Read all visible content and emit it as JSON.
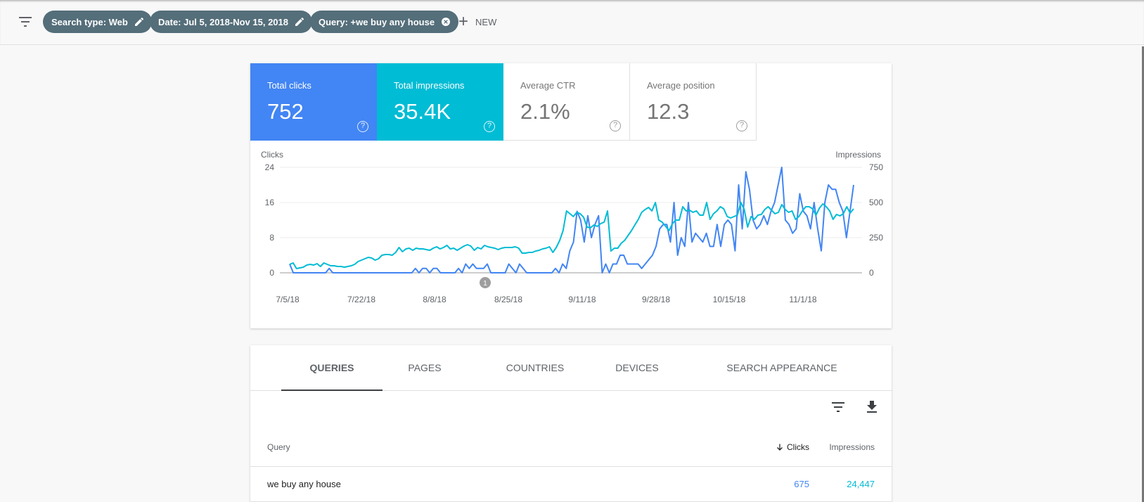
{
  "filter_bar": {
    "chips": [
      {
        "label": "Search type: Web",
        "icon": "pencil-icon"
      },
      {
        "label": "Date: Jul 5, 2018-Nov 15, 2018",
        "icon": "pencil-icon"
      },
      {
        "label": "Query: +we buy any house",
        "icon": "close-circle-icon"
      }
    ],
    "new_label": "NEW"
  },
  "metrics": {
    "clicks": {
      "label": "Total clicks",
      "value": "752",
      "color": "#4285f4"
    },
    "impressions": {
      "label": "Total impressions",
      "value": "35.4K",
      "color": "#00bcd4"
    },
    "ctr": {
      "label": "Average CTR",
      "value": "2.1%"
    },
    "position": {
      "label": "Average position",
      "value": "12.3"
    }
  },
  "chart_data": {
    "type": "line",
    "left_axis_label": "Clicks",
    "right_axis_label": "Impressions",
    "left_ticks": [
      "24",
      "16",
      "8",
      "0"
    ],
    "right_ticks": [
      "750",
      "500",
      "250",
      "0"
    ],
    "ylim_left": [
      0,
      24
    ],
    "ylim_right": [
      0,
      750
    ],
    "x_ticks": [
      "7/5/18",
      "7/22/18",
      "8/8/18",
      "8/25/18",
      "9/11/18",
      "9/28/18",
      "10/15/18",
      "11/1/18"
    ],
    "annotation": "1",
    "grid": true,
    "series": [
      {
        "name": "Clicks",
        "axis": "left",
        "color": "#4285f4",
        "values": [
          2,
          0,
          0,
          0,
          0,
          0,
          0,
          0,
          0,
          0,
          0,
          1,
          0,
          0,
          0,
          0,
          0,
          0,
          0,
          0,
          0,
          0,
          0,
          0,
          0,
          0,
          0,
          0,
          0,
          0,
          0,
          0,
          0,
          0,
          0,
          1,
          0,
          1,
          1,
          0,
          1,
          1,
          0,
          0,
          0,
          0,
          0,
          1,
          0,
          2,
          1,
          2,
          1,
          1,
          1,
          2,
          0,
          0,
          0,
          0,
          0,
          2,
          1,
          0,
          2,
          1,
          0,
          0,
          0,
          0,
          0,
          0,
          0,
          0,
          1,
          0,
          2,
          1,
          5,
          7,
          14,
          12,
          7,
          13,
          8,
          11,
          13,
          0,
          2,
          0,
          2,
          2,
          4,
          4,
          2,
          2,
          2,
          2,
          1,
          2,
          3,
          4,
          6,
          10,
          11,
          11,
          7,
          16,
          4,
          8,
          6,
          16,
          7,
          9,
          8,
          7,
          9,
          6,
          6,
          11,
          6,
          11,
          12,
          11,
          5,
          20,
          10,
          23,
          19,
          12,
          10,
          11,
          13,
          11,
          14,
          16,
          20,
          24,
          12,
          11,
          9,
          10,
          18,
          14,
          13,
          10,
          16,
          10,
          5,
          16,
          20,
          19,
          19,
          16,
          14,
          8,
          14,
          20
        ]
      },
      {
        "name": "Impressions",
        "axis": "right",
        "color": "#00bcd4",
        "values": [
          60,
          70,
          30,
          35,
          40,
          55,
          60,
          55,
          65,
          45,
          70,
          60,
          50,
          50,
          45,
          45,
          40,
          45,
          50,
          60,
          80,
          90,
          100,
          110,
          105,
          90,
          100,
          125,
          130,
          130,
          125,
          145,
          180,
          150,
          170,
          175,
          160,
          175,
          170,
          170,
          165,
          160,
          175,
          185,
          170,
          180,
          195,
          170,
          175,
          160,
          175,
          190,
          200,
          190,
          160,
          180,
          170,
          195,
          185,
          180,
          175,
          165,
          175,
          180,
          180,
          180,
          185,
          175,
          140,
          140,
          145,
          145,
          155,
          160,
          170,
          175,
          185,
          145,
          180,
          230,
          300,
          440,
          420,
          400,
          430,
          420,
          395,
          325,
          320,
          340,
          330,
          350,
          360,
          440,
          155,
          175,
          175,
          210,
          230,
          265,
          300,
          340,
          380,
          430,
          450,
          465,
          440,
          500,
          375,
          360,
          330,
          300,
          350,
          375,
          375,
          470,
          440,
          445,
          430,
          440,
          410,
          410,
          500,
          380,
          420,
          440,
          470,
          455,
          400,
          390,
          400,
          410,
          500,
          450,
          325,
          400,
          380,
          410,
          415,
          450,
          470,
          445,
          420,
          430,
          485,
          450,
          430,
          440,
          380,
          400,
          440,
          470,
          470,
          455,
          410,
          460,
          490,
          470,
          440,
          380,
          415,
          405,
          420,
          470,
          425,
          455
        ]
      }
    ]
  },
  "tabs": {
    "items": [
      "QUERIES",
      "PAGES",
      "COUNTRIES",
      "DEVICES",
      "SEARCH APPEARANCE"
    ],
    "active": 0
  },
  "table": {
    "headers": {
      "query": "Query",
      "clicks": "Clicks",
      "impressions": "Impressions"
    },
    "sort_icon": "arrow-down-icon",
    "rows": [
      {
        "query": "we buy any house",
        "clicks": "675",
        "impressions": "24,447"
      }
    ],
    "clicks_color": "#4285f4",
    "impressions_color": "#00bcd4"
  }
}
